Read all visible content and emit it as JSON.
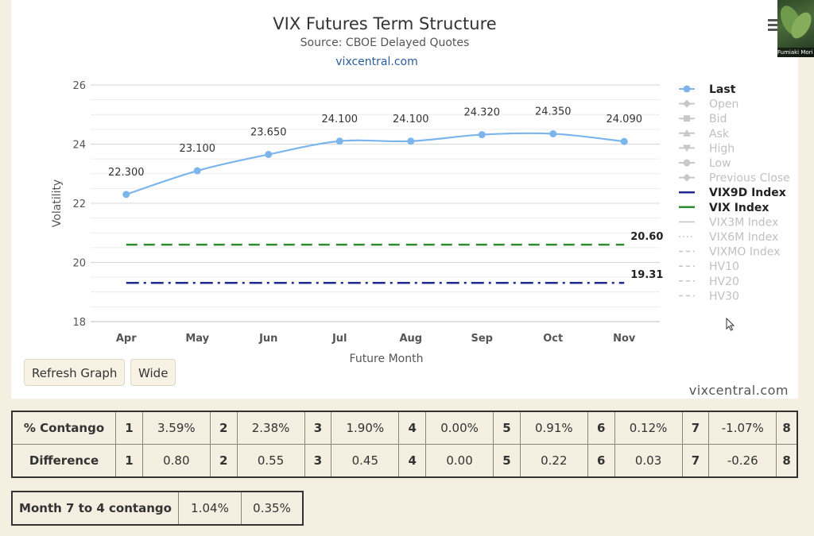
{
  "chart_data": {
    "type": "line",
    "title": "VIX Futures Term Structure",
    "subtitle": "Source: CBOE Delayed Quotes",
    "site_link": "vixcentral.com",
    "xlabel": "Future Month",
    "ylabel": "Volatility",
    "categories": [
      "Apr",
      "May",
      "Jun",
      "Jul",
      "Aug",
      "Sep",
      "Oct",
      "Nov"
    ],
    "ylim": [
      18,
      26
    ],
    "yticks": [
      18,
      20,
      22,
      24,
      26
    ],
    "grid": true,
    "legend_position": "right",
    "series": [
      {
        "name": "Last",
        "color": "#7cb5ec",
        "values": [
          22.3,
          23.1,
          23.65,
          24.1,
          24.1,
          24.32,
          24.35,
          24.09
        ],
        "labels": [
          "22.300",
          "23.100",
          "23.650",
          "24.100",
          "24.100",
          "24.320",
          "24.350",
          "24.090"
        ]
      }
    ],
    "reference_lines": [
      {
        "name": "VIX Index",
        "value": 20.6,
        "label": "20.60",
        "color": "#2e8b2e",
        "style": "dashed"
      },
      {
        "name": "VIX9D Index",
        "value": 19.31,
        "label": "19.31",
        "color": "#1f2a8f",
        "style": "dashdot"
      }
    ],
    "legend": [
      {
        "name": "Last",
        "active": true,
        "color": "#7cb5ec",
        "symbol": "circle"
      },
      {
        "name": "Open",
        "active": false,
        "symbol": "diamond"
      },
      {
        "name": "Bid",
        "active": false,
        "symbol": "square"
      },
      {
        "name": "Ask",
        "active": false,
        "symbol": "triangle"
      },
      {
        "name": "High",
        "active": false,
        "symbol": "triangle-down"
      },
      {
        "name": "Low",
        "active": false,
        "symbol": "circle"
      },
      {
        "name": "Previous Close",
        "active": false,
        "symbol": "diamond"
      },
      {
        "name": "VIX9D Index",
        "active": true,
        "color": "#1f2a8f",
        "symbol": "line"
      },
      {
        "name": "VIX Index",
        "active": true,
        "color": "#2e8b2e",
        "symbol": "line"
      },
      {
        "name": "VIX3M Index",
        "active": false,
        "symbol": "line"
      },
      {
        "name": "VIX6M Index",
        "active": false,
        "symbol": "dotted"
      },
      {
        "name": "VIXMO Index",
        "active": false,
        "symbol": "dashed"
      },
      {
        "name": "HV10",
        "active": false,
        "symbol": "dashed"
      },
      {
        "name": "HV20",
        "active": false,
        "symbol": "dashed"
      },
      {
        "name": "HV30",
        "active": false,
        "symbol": "dashed"
      }
    ]
  },
  "buttons": {
    "refresh": "Refresh Graph",
    "wide": "Wide"
  },
  "credit": "vixcentral.com",
  "contango_table": {
    "rows": [
      {
        "label": "% Contango",
        "cells": [
          [
            "1",
            "3.59%"
          ],
          [
            "2",
            "2.38%"
          ],
          [
            "3",
            "1.90%"
          ],
          [
            "4",
            "0.00%"
          ],
          [
            "5",
            "0.91%"
          ],
          [
            "6",
            "0.12%"
          ],
          [
            "7",
            "-1.07%"
          ]
        ],
        "last_index": "8"
      },
      {
        "label": "Difference",
        "cells": [
          [
            "1",
            "0.80"
          ],
          [
            "2",
            "0.55"
          ],
          [
            "3",
            "0.45"
          ],
          [
            "4",
            "0.00"
          ],
          [
            "5",
            "0.22"
          ],
          [
            "6",
            "0.03"
          ],
          [
            "7",
            "-0.26"
          ]
        ],
        "last_index": "8"
      }
    ]
  },
  "month_table": {
    "label": "Month 7 to 4 contango",
    "value1": "1.04%",
    "value2": "0.35%"
  },
  "video_overlay": {
    "label": "Fumiaki Mori"
  }
}
